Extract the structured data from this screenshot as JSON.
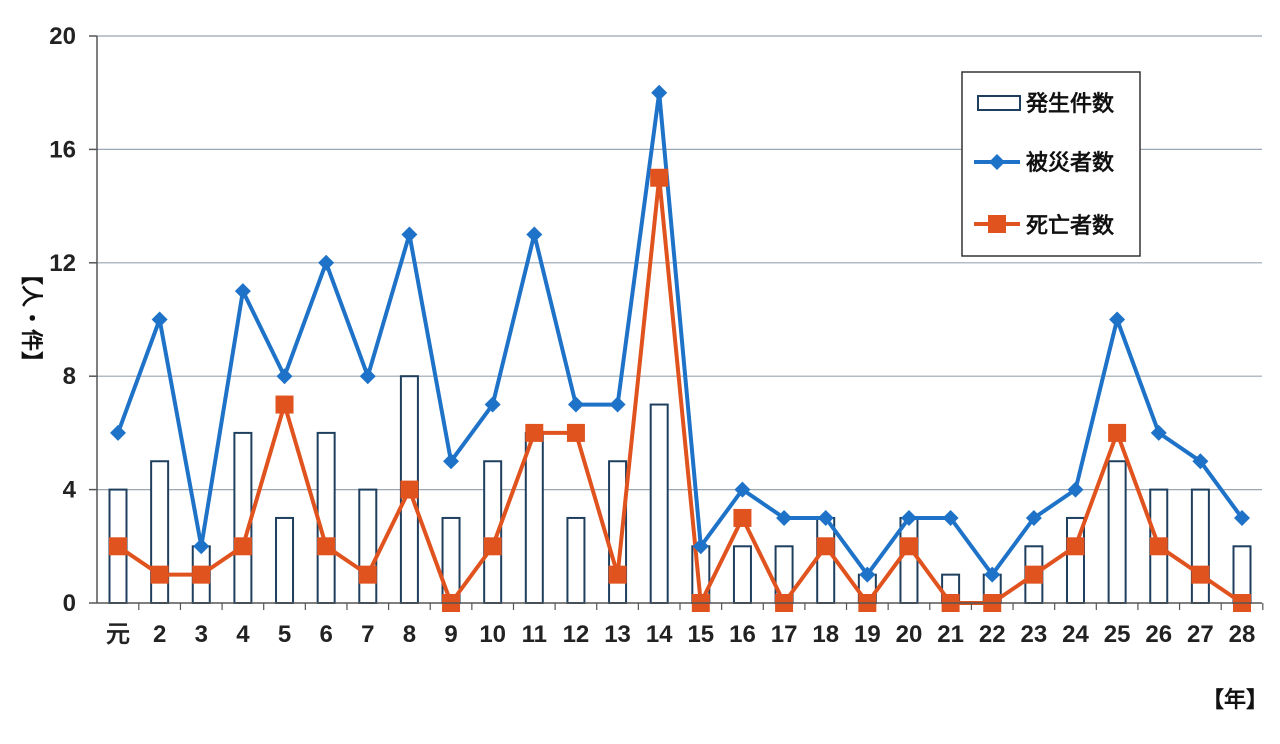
{
  "chart_data": {
    "type": "bar",
    "categories": [
      "元",
      "2",
      "3",
      "4",
      "5",
      "6",
      "7",
      "8",
      "9",
      "10",
      "11",
      "12",
      "13",
      "14",
      "15",
      "16",
      "17",
      "18",
      "19",
      "20",
      "21",
      "22",
      "23",
      "24",
      "25",
      "26",
      "27",
      "28"
    ],
    "series": [
      {
        "name": "発生件数",
        "type": "bar",
        "values": [
          4,
          5,
          2,
          6,
          3,
          6,
          4,
          8,
          3,
          5,
          6,
          3,
          5,
          7,
          2,
          2,
          2,
          3,
          1,
          3,
          1,
          1,
          2,
          3,
          5,
          4,
          4,
          2
        ]
      },
      {
        "name": "被災者数",
        "type": "line",
        "marker": "diamond",
        "values": [
          6,
          10,
          2,
          11,
          8,
          12,
          8,
          13,
          5,
          7,
          13,
          7,
          7,
          18,
          2,
          4,
          3,
          3,
          1,
          3,
          3,
          1,
          3,
          4,
          10,
          6,
          5,
          3
        ]
      },
      {
        "name": "死亡者数",
        "type": "line",
        "marker": "square",
        "values": [
          2,
          1,
          1,
          2,
          7,
          2,
          1,
          4,
          0,
          2,
          6,
          6,
          1,
          15,
          0,
          3,
          0,
          2,
          0,
          2,
          0,
          0,
          1,
          2,
          6,
          2,
          1,
          0
        ]
      }
    ],
    "ylim": [
      0,
      20
    ],
    "yticks": [
      "0",
      "4",
      "8",
      "12",
      "16",
      "20"
    ],
    "ylabel": "【人・件】",
    "xlabel": "【年】",
    "grid": true,
    "legend_position": "top-right",
    "colors": {
      "bar_fill": "#ffffff",
      "bar_stroke": "#1f3f5f",
      "victims": "#1e73c8",
      "deaths": "#e0531e",
      "grid": "#9aa6b2"
    }
  }
}
